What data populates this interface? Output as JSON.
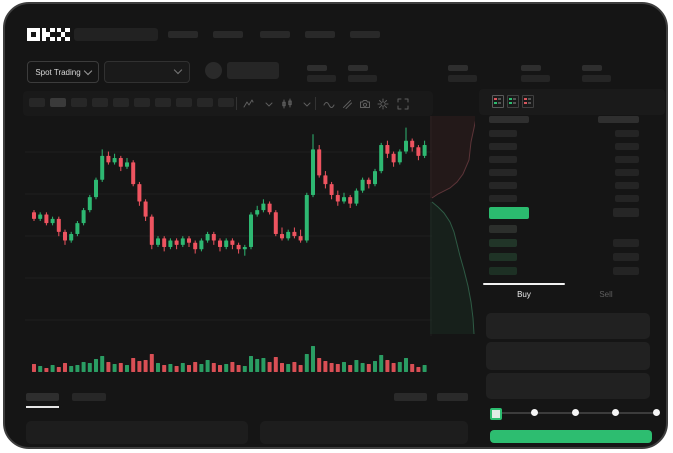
{
  "app": {
    "name": "OKX",
    "theme_bg": "#151515",
    "frame_bg": "#ffffff"
  },
  "colors": {
    "up_green": "#2eb872",
    "down_red": "#ee5460",
    "accent_green": "#2dbd70",
    "muted_bid_green": "#1f3326",
    "placeholder": "#292929",
    "white": "#ffffff"
  },
  "header": {
    "logo": "OKX",
    "nav_placeholder_count": 5
  },
  "market_bar": {
    "mode_label": "Spot Trading",
    "stat_group_count": 5
  },
  "chart_toolbar": {
    "timeframe_count": 10,
    "active_timeframe_index": 1,
    "icons": [
      "chart-style",
      "chevron",
      "overlay",
      "chevron",
      "wave",
      "draw",
      "camera",
      "gear",
      "expand"
    ]
  },
  "chart_data": {
    "type": "candlestick",
    "title": "",
    "xlabel": "",
    "ylabel": "",
    "grid": true,
    "ylim": [
      0,
      100
    ],
    "candles_ohlc": [
      [
        57,
        58,
        53,
        54
      ],
      [
        54,
        57,
        53,
        56
      ],
      [
        56,
        57,
        51,
        52
      ],
      [
        52,
        55,
        51,
        54
      ],
      [
        54,
        55,
        46,
        48
      ],
      [
        48,
        49,
        42,
        44
      ],
      [
        44,
        48,
        43,
        47
      ],
      [
        47,
        53,
        46,
        52
      ],
      [
        52,
        59,
        51,
        58
      ],
      [
        58,
        65,
        57,
        64
      ],
      [
        64,
        73,
        63,
        72
      ],
      [
        72,
        86,
        71,
        83
      ],
      [
        83,
        85,
        79,
        80
      ],
      [
        80,
        84,
        79,
        82
      ],
      [
        82,
        83,
        76,
        78
      ],
      [
        78,
        82,
        77,
        80
      ],
      [
        80,
        81,
        69,
        70
      ],
      [
        70,
        71,
        60,
        62
      ],
      [
        62,
        63,
        53,
        55
      ],
      [
        55,
        56,
        40,
        42
      ],
      [
        42,
        46,
        41,
        45
      ],
      [
        45,
        46,
        39,
        41
      ],
      [
        41,
        45,
        40,
        44
      ],
      [
        44,
        45,
        40,
        42
      ],
      [
        42,
        46,
        41,
        45
      ],
      [
        45,
        46,
        41,
        43
      ],
      [
        43,
        44,
        38,
        40
      ],
      [
        40,
        45,
        39,
        44
      ],
      [
        44,
        48,
        43,
        47
      ],
      [
        47,
        48,
        42,
        44
      ],
      [
        44,
        45,
        39,
        41
      ],
      [
        41,
        45,
        40,
        44
      ],
      [
        44,
        45,
        40,
        42
      ],
      [
        42,
        43,
        38,
        40
      ],
      [
        40,
        42,
        37,
        41
      ],
      [
        41,
        57,
        40,
        56
      ],
      [
        56,
        60,
        55,
        58
      ],
      [
        58,
        63,
        57,
        61
      ],
      [
        61,
        62,
        56,
        57
      ],
      [
        57,
        58,
        46,
        47
      ],
      [
        47,
        50,
        44,
        45
      ],
      [
        45,
        49,
        44,
        48
      ],
      [
        48,
        50,
        45,
        46
      ],
      [
        46,
        49,
        43,
        44
      ],
      [
        44,
        66,
        43,
        65
      ],
      [
        65,
        93,
        64,
        86
      ],
      [
        86,
        88,
        73,
        74
      ],
      [
        74,
        76,
        68,
        70
      ],
      [
        70,
        71,
        63,
        65
      ],
      [
        65,
        67,
        60,
        62
      ],
      [
        62,
        66,
        61,
        64
      ],
      [
        64,
        65,
        59,
        61
      ],
      [
        61,
        68,
        60,
        67
      ],
      [
        67,
        73,
        66,
        72
      ],
      [
        72,
        73,
        68,
        70
      ],
      [
        70,
        77,
        69,
        76
      ],
      [
        76,
        89,
        75,
        88
      ],
      [
        88,
        90,
        82,
        84
      ],
      [
        84,
        85,
        78,
        80
      ],
      [
        80,
        86,
        79,
        85
      ],
      [
        85,
        96,
        84,
        90
      ],
      [
        90,
        91,
        85,
        87
      ],
      [
        87,
        88,
        81,
        83
      ],
      [
        83,
        90,
        82,
        88
      ]
    ],
    "volume": [
      8,
      6,
      4,
      7,
      5,
      9,
      6,
      7,
      10,
      9,
      13,
      16,
      10,
      8,
      9,
      7,
      14,
      11,
      12,
      18,
      9,
      7,
      8,
      6,
      9,
      7,
      10,
      8,
      12,
      9,
      7,
      8,
      10,
      7,
      6,
      16,
      13,
      14,
      10,
      15,
      9,
      8,
      10,
      7,
      18,
      26,
      14,
      11,
      9,
      8,
      10,
      7,
      12,
      9,
      8,
      11,
      17,
      12,
      9,
      10,
      14,
      8,
      5,
      7
    ],
    "depth_profile": {
      "ask_line": [
        [
          46,
          2
        ],
        [
          44,
          12
        ],
        [
          41,
          26
        ],
        [
          39,
          44
        ],
        [
          33,
          58
        ],
        [
          27,
          66
        ],
        [
          20,
          72
        ],
        [
          8,
          78
        ],
        [
          2,
          82
        ]
      ],
      "bid_line": [
        [
          2,
          86
        ],
        [
          8,
          91
        ],
        [
          14,
          97
        ],
        [
          20,
          106
        ],
        [
          24,
          116
        ],
        [
          27,
          128
        ],
        [
          30,
          140
        ],
        [
          34,
          154
        ],
        [
          38,
          170
        ],
        [
          41,
          186
        ],
        [
          43,
          202
        ],
        [
          44,
          218
        ]
      ]
    }
  },
  "orderbook": {
    "view_modes": [
      "book-both",
      "book-bids",
      "book-asks"
    ],
    "ask_row_count": 6,
    "bid_row_count": 4,
    "bid_row_colors": [
      "#2c2f2c",
      "#213528",
      "#1f3326",
      "#1d3024"
    ],
    "right_bid_rows": 3
  },
  "trade_panel": {
    "tabs": [
      {
        "label": "Buy",
        "active": true
      },
      {
        "label": "Sell",
        "active": false
      }
    ],
    "input_count": 3,
    "slider": {
      "stops": 5,
      "active_stop": 0
    },
    "submit_color": "#2dbd70"
  },
  "bottom_bar": {
    "tab_count": 2,
    "active_tab_index": 0,
    "right_block_count": 2,
    "panel_count": 2
  }
}
